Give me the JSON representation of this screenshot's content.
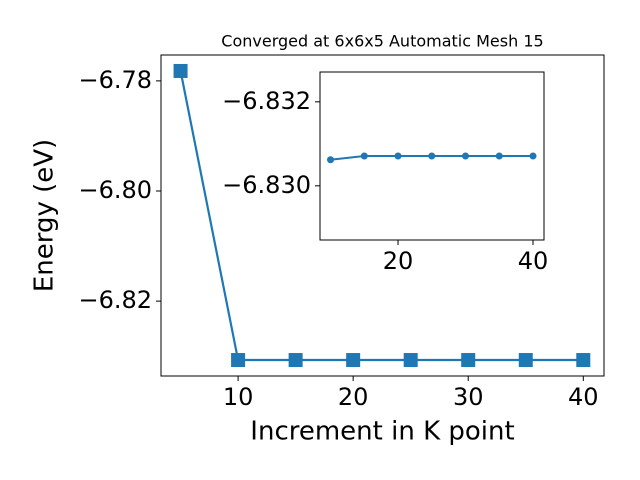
{
  "chart_data": [
    {
      "type": "line",
      "title": "Converged at 6x6x5 Automatic Mesh 15",
      "x_label": "Increment in K point",
      "y_label": "Energy (eV)",
      "x": [
        5,
        10,
        15,
        20,
        25,
        30,
        35,
        40
      ],
      "series": [
        {
          "color": "#1f77b4",
          "marker": "square",
          "values": [
            -6.7782,
            -6.8307,
            -6.8307,
            -6.8307,
            -6.8307,
            -6.8307,
            -6.8307,
            -6.8307
          ]
        }
      ],
      "xlim": [
        3.3,
        41.8
      ],
      "ylim": [
        -6.8336,
        -6.7753
      ],
      "xticks": [
        10,
        20,
        30,
        40
      ],
      "yticks": [
        {
          "value": -6.78,
          "label": "−6.78"
        },
        {
          "value": -6.8,
          "label": "−6.80"
        },
        {
          "value": -6.82,
          "label": "−6.82"
        }
      ]
    },
    {
      "type": "line",
      "x": [
        10,
        15,
        20,
        25,
        30,
        35,
        40
      ],
      "series": [
        {
          "color": "#1f77b4",
          "marker": "circle",
          "values": [
            -6.83062,
            -6.83071,
            -6.83071,
            -6.83071,
            -6.83071,
            -6.83071,
            -6.83071
          ]
        }
      ],
      "xlim": [
        8.44,
        41.63
      ],
      "ylim": [
        -6.82871,
        -6.83271
      ],
      "y_inverted": true,
      "xticks": [
        20,
        40
      ],
      "yticks": [
        {
          "value": -6.832,
          "label": "−6.832"
        },
        {
          "value": -6.83,
          "label": "−6.830"
        }
      ]
    }
  ]
}
